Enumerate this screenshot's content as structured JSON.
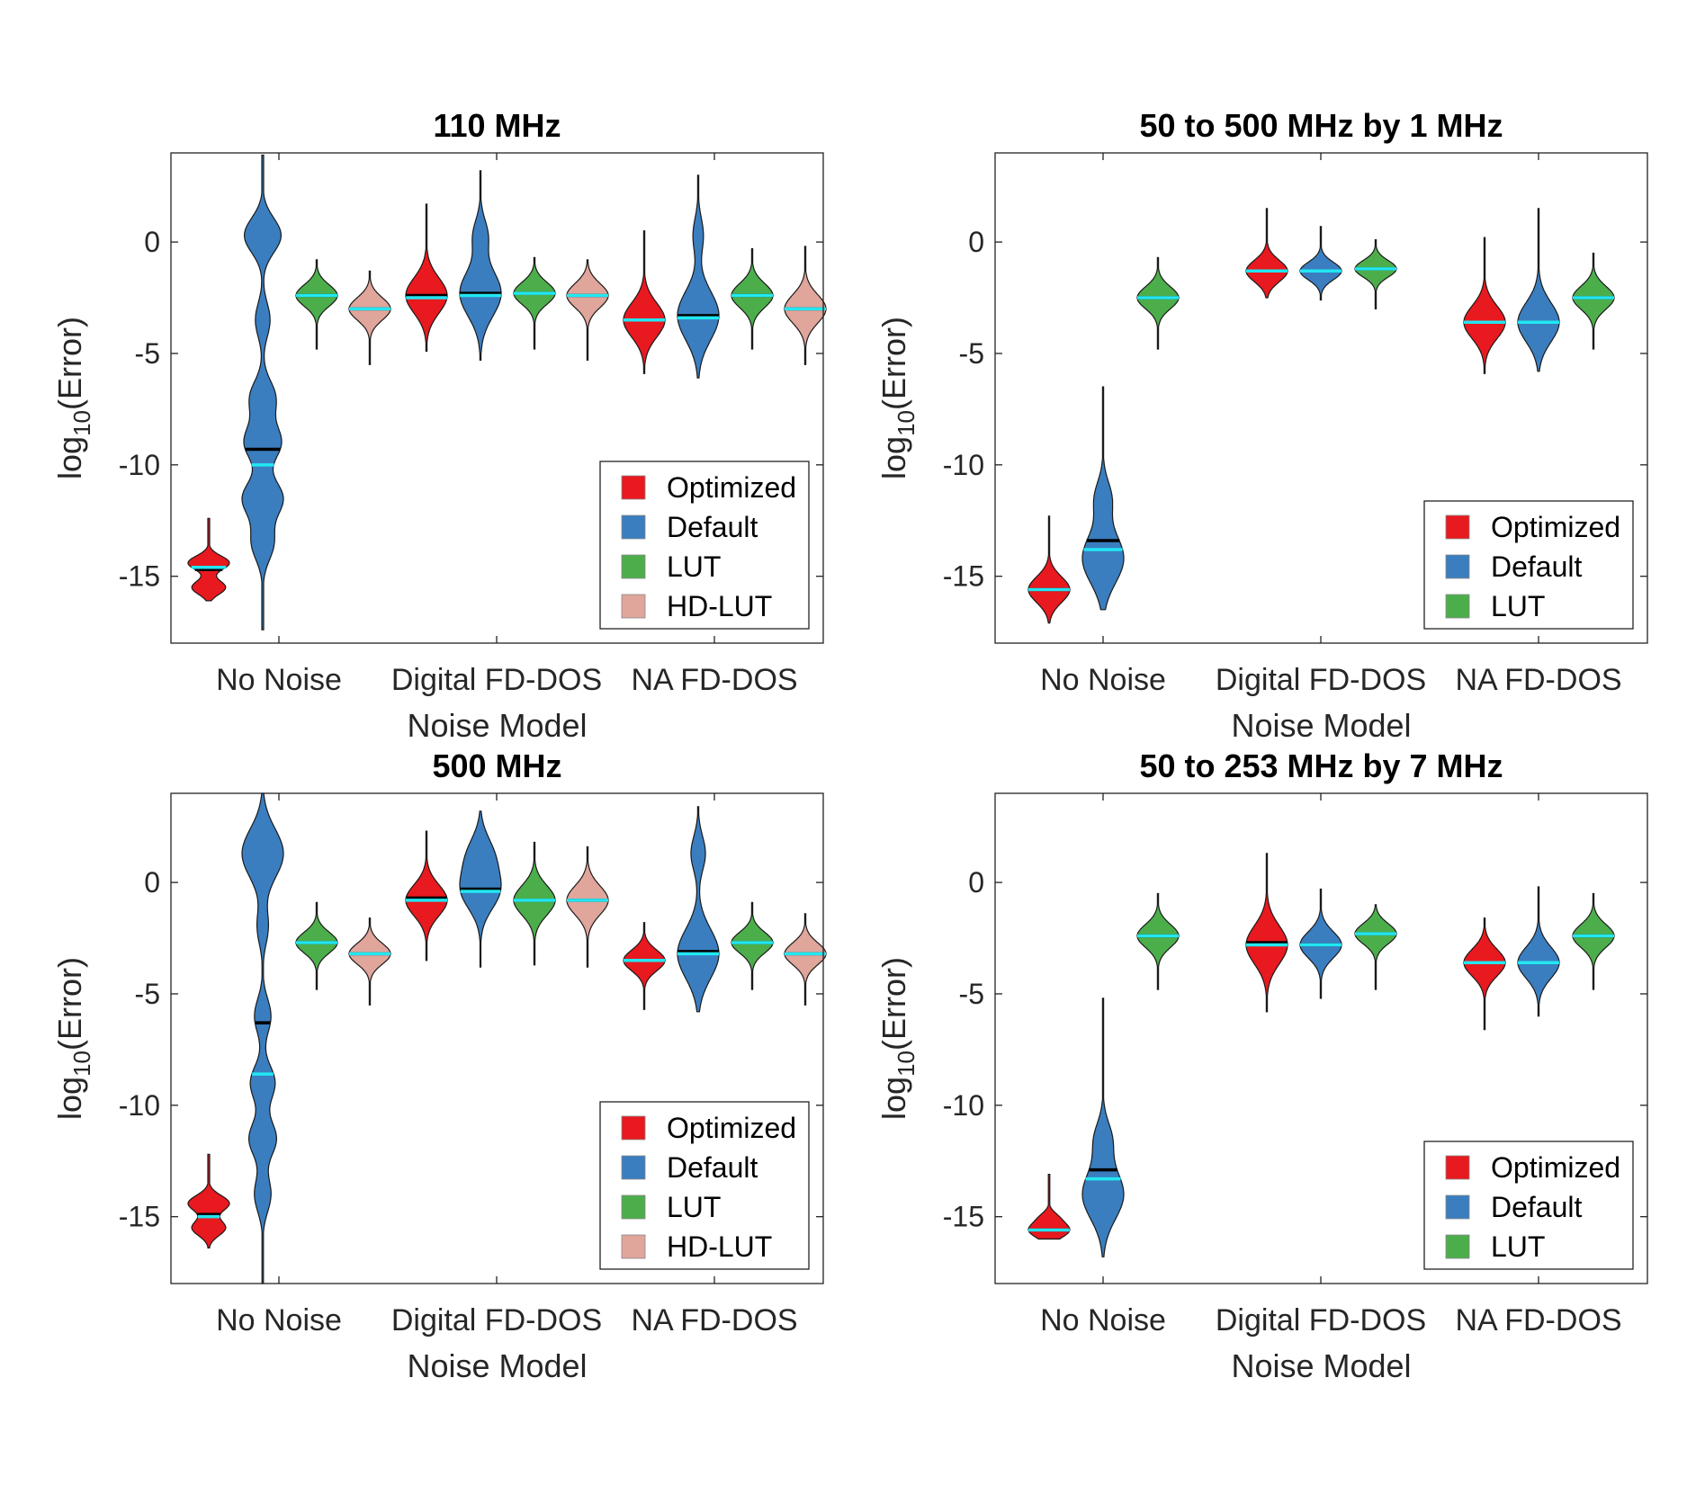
{
  "figure": {
    "background": "#ffffff"
  },
  "colors": {
    "Optimized": "#e8191f",
    "Default": "#3a7ec0",
    "LUT": "#4cae4b",
    "HD-LUT": "#e0a59b",
    "median_line": "#000000",
    "mean_line": "#22e7f2"
  },
  "chart_data": [
    {
      "type": "violin",
      "title": "110 MHz",
      "xlabel": "Noise Model",
      "ylabel": "log10(Error)",
      "ylim": [
        -18,
        4
      ],
      "yticks": [
        0,
        -5,
        -10,
        -15
      ],
      "categories": [
        "No Noise",
        "Digital FD-DOS",
        "NA FD-DOS"
      ],
      "legend": {
        "position": "bottom-right",
        "entries": [
          "Optimized",
          "Default",
          "LUT",
          "HD-LUT"
        ]
      },
      "groups": [
        {
          "category": "No Noise",
          "violins": [
            {
              "series": "Optimized",
              "min": -16.1,
              "max": -12.4,
              "median": -14.7,
              "mean": -14.6,
              "modes": [
                [
                  -14.4,
                  0.55
                ],
                [
                  -15.5,
                  0.45
                ]
              ]
            },
            {
              "series": "Default",
              "min": -17.4,
              "max": 3.9,
              "median": -9.3,
              "mean": -10.0,
              "modes": [
                [
                  0.3,
                  0.5
                ],
                [
                  -3.5,
                  0.2
                ],
                [
                  -7.0,
                  0.35
                ],
                [
                  -9.0,
                  0.5
                ],
                [
                  -11.5,
                  0.55
                ],
                [
                  -13.5,
                  0.3
                ]
              ]
            },
            {
              "series": "LUT",
              "min": -4.8,
              "max": -0.8,
              "median": -2.4,
              "mean": -2.4,
              "modes": [
                [
                  -2.4,
                  1.0
                ]
              ]
            },
            {
              "series": "HD-LUT",
              "min": -5.5,
              "max": -1.3,
              "median": -3.0,
              "mean": -3.0,
              "modes": [
                [
                  -3.0,
                  1.0
                ]
              ]
            }
          ]
        },
        {
          "category": "Digital FD-DOS",
          "violins": [
            {
              "series": "Optimized",
              "min": -4.9,
              "max": 1.7,
              "median": -2.4,
              "mean": -2.5,
              "modes": [
                [
                  -2.4,
                  1.0
                ]
              ]
            },
            {
              "series": "Default",
              "min": -5.3,
              "max": 3.2,
              "median": -2.3,
              "mean": -2.4,
              "modes": [
                [
                  -2.3,
                  1.0
                ],
                [
                  0.3,
                  0.35
                ]
              ]
            },
            {
              "series": "LUT",
              "min": -4.8,
              "max": -0.7,
              "median": -2.3,
              "mean": -2.3,
              "modes": [
                [
                  -2.3,
                  1.0
                ]
              ]
            },
            {
              "series": "HD-LUT",
              "min": -5.3,
              "max": -0.8,
              "median": -2.4,
              "mean": -2.4,
              "modes": [
                [
                  -2.4,
                  1.0
                ]
              ]
            }
          ]
        },
        {
          "category": "NA FD-DOS",
          "violins": [
            {
              "series": "Optimized",
              "min": -5.9,
              "max": 0.5,
              "median": -3.5,
              "mean": -3.5,
              "modes": [
                [
                  -3.5,
                  1.0
                ]
              ]
            },
            {
              "series": "Default",
              "min": -6.1,
              "max": 3.0,
              "median": -3.3,
              "mean": -3.4,
              "modes": [
                [
                  -3.3,
                  1.0
                ],
                [
                  0.3,
                  0.25
                ]
              ]
            },
            {
              "series": "LUT",
              "min": -4.8,
              "max": -0.3,
              "median": -2.4,
              "mean": -2.4,
              "modes": [
                [
                  -2.4,
                  1.0
                ]
              ]
            },
            {
              "series": "HD-LUT",
              "min": -5.5,
              "max": -0.2,
              "median": -3.0,
              "mean": -3.0,
              "modes": [
                [
                  -3.0,
                  1.0
                ]
              ]
            }
          ]
        }
      ]
    },
    {
      "type": "violin",
      "title": "50 to 500 MHz by 1 MHz",
      "xlabel": "Noise Model",
      "ylabel": "log10(Error)",
      "ylim": [
        -18,
        4
      ],
      "yticks": [
        0,
        -5,
        -10,
        -15
      ],
      "categories": [
        "No Noise",
        "Digital FD-DOS",
        "NA FD-DOS"
      ],
      "legend": {
        "position": "bottom-right",
        "entries": [
          "Optimized",
          "Default",
          "LUT"
        ]
      },
      "groups": [
        {
          "category": "No Noise",
          "violins": [
            {
              "series": "Optimized",
              "min": -17.1,
              "max": -12.3,
              "median": -15.6,
              "mean": -15.6,
              "modes": [
                [
                  -15.6,
                  1.0
                ]
              ]
            },
            {
              "series": "Default",
              "min": -16.5,
              "max": -6.5,
              "median": -13.4,
              "mean": -13.8,
              "modes": [
                [
                  -14.2,
                  1.0
                ],
                [
                  -11.5,
                  0.4
                ]
              ]
            },
            {
              "series": "LUT",
              "min": -4.8,
              "max": -0.7,
              "median": -2.5,
              "mean": -2.5,
              "modes": [
                [
                  -2.5,
                  1.0
                ]
              ]
            }
          ]
        },
        {
          "category": "Digital FD-DOS",
          "violins": [
            {
              "series": "Optimized",
              "min": -2.5,
              "max": 1.5,
              "median": -1.3,
              "mean": -1.3,
              "modes": [
                [
                  -1.3,
                  1.0
                ]
              ]
            },
            {
              "series": "Default",
              "min": -2.6,
              "max": 0.7,
              "median": -1.3,
              "mean": -1.3,
              "modes": [
                [
                  -1.3,
                  1.0
                ]
              ]
            },
            {
              "series": "LUT",
              "min": -3.0,
              "max": 0.1,
              "median": -1.2,
              "mean": -1.2,
              "modes": [
                [
                  -1.2,
                  1.0
                ]
              ]
            }
          ]
        },
        {
          "category": "NA FD-DOS",
          "violins": [
            {
              "series": "Optimized",
              "min": -5.9,
              "max": 0.2,
              "median": -3.6,
              "mean": -3.6,
              "modes": [
                [
                  -3.6,
                  1.0
                ]
              ]
            },
            {
              "series": "Default",
              "min": -5.8,
              "max": 1.5,
              "median": -3.6,
              "mean": -3.6,
              "modes": [
                [
                  -3.6,
                  1.0
                ]
              ]
            },
            {
              "series": "LUT",
              "min": -4.8,
              "max": -0.5,
              "median": -2.5,
              "mean": -2.5,
              "modes": [
                [
                  -2.5,
                  1.0
                ]
              ]
            }
          ]
        }
      ]
    },
    {
      "type": "violin",
      "title": "500 MHz",
      "xlabel": "Noise Model",
      "ylabel": "log10(Error)",
      "ylim": [
        -18,
        4
      ],
      "yticks": [
        0,
        -5,
        -10,
        -15
      ],
      "categories": [
        "No Noise",
        "Digital FD-DOS",
        "NA FD-DOS"
      ],
      "legend": {
        "position": "bottom-right",
        "entries": [
          "Optimized",
          "Default",
          "LUT",
          "HD-LUT"
        ]
      },
      "groups": [
        {
          "category": "No Noise",
          "violins": [
            {
              "series": "Optimized",
              "min": -16.4,
              "max": -12.2,
              "median": -14.9,
              "mean": -15.0,
              "modes": [
                [
                  -14.4,
                  0.55
                ],
                [
                  -15.5,
                  0.45
                ]
              ]
            },
            {
              "series": "Default",
              "min": -18.0,
              "max": 4.0,
              "median": -6.3,
              "mean": -8.6,
              "modes": [
                [
                  1.3,
                  0.75
                ],
                [
                  -2.0,
                  0.2
                ],
                [
                  -6.0,
                  0.3
                ],
                [
                  -9.0,
                  0.45
                ],
                [
                  -11.5,
                  0.5
                ],
                [
                  -14.0,
                  0.3
                ]
              ]
            },
            {
              "series": "LUT",
              "min": -4.8,
              "max": -0.9,
              "median": -2.7,
              "mean": -2.7,
              "modes": [
                [
                  -2.7,
                  1.0
                ]
              ]
            },
            {
              "series": "HD-LUT",
              "min": -5.5,
              "max": -1.6,
              "median": -3.2,
              "mean": -3.2,
              "modes": [
                [
                  -3.2,
                  1.0
                ]
              ]
            }
          ]
        },
        {
          "category": "Digital FD-DOS",
          "violins": [
            {
              "series": "Optimized",
              "min": -3.5,
              "max": 2.3,
              "median": -0.7,
              "mean": -0.8,
              "modes": [
                [
                  -0.8,
                  1.0
                ]
              ]
            },
            {
              "series": "Default",
              "min": -3.8,
              "max": 3.2,
              "median": -0.3,
              "mean": -0.4,
              "modes": [
                [
                  -0.4,
                  1.0
                ],
                [
                  1.2,
                  0.7
                ]
              ]
            },
            {
              "series": "LUT",
              "min": -3.7,
              "max": 1.8,
              "median": -0.8,
              "mean": -0.8,
              "modes": [
                [
                  -0.8,
                  1.0
                ]
              ]
            },
            {
              "series": "HD-LUT",
              "min": -3.8,
              "max": 1.6,
              "median": -0.8,
              "mean": -0.8,
              "modes": [
                [
                  -0.8,
                  1.0
                ]
              ]
            }
          ]
        },
        {
          "category": "NA FD-DOS",
          "violins": [
            {
              "series": "Optimized",
              "min": -5.7,
              "max": -1.8,
              "median": -3.5,
              "mean": -3.5,
              "modes": [
                [
                  -3.5,
                  1.0
                ]
              ]
            },
            {
              "series": "Default",
              "min": -5.8,
              "max": 3.4,
              "median": -3.1,
              "mean": -3.2,
              "modes": [
                [
                  -3.2,
                  1.0
                ],
                [
                  1.3,
                  0.35
                ]
              ]
            },
            {
              "series": "LUT",
              "min": -4.8,
              "max": -0.9,
              "median": -2.7,
              "mean": -2.7,
              "modes": [
                [
                  -2.7,
                  1.0
                ]
              ]
            },
            {
              "series": "HD-LUT",
              "min": -5.5,
              "max": -1.4,
              "median": -3.2,
              "mean": -3.2,
              "modes": [
                [
                  -3.2,
                  1.0
                ]
              ]
            }
          ]
        }
      ]
    },
    {
      "type": "violin",
      "title": "50 to 253 MHz by 7 MHz",
      "xlabel": "Noise Model",
      "ylabel": "log10(Error)",
      "ylim": [
        -18,
        4
      ],
      "yticks": [
        0,
        -5,
        -10,
        -15
      ],
      "categories": [
        "No Noise",
        "Digital FD-DOS",
        "NA FD-DOS"
      ],
      "legend": {
        "position": "bottom-right",
        "entries": [
          "Optimized",
          "Default",
          "LUT"
        ]
      },
      "groups": [
        {
          "category": "No Noise",
          "violins": [
            {
              "series": "Optimized",
              "min": -16.0,
              "max": -13.1,
              "median": -15.6,
              "mean": -15.6,
              "modes": [
                [
                  -15.6,
                  0.7
                ],
                [
                  -15.0,
                  0.2
                ]
              ]
            },
            {
              "series": "Default",
              "min": -16.8,
              "max": -5.2,
              "median": -12.9,
              "mean": -13.3,
              "modes": [
                [
                  -14.0,
                  1.0
                ],
                [
                  -11.5,
                  0.4
                ]
              ]
            },
            {
              "series": "LUT",
              "min": -4.8,
              "max": -0.5,
              "median": -2.4,
              "mean": -2.4,
              "modes": [
                [
                  -2.4,
                  1.0
                ]
              ]
            }
          ]
        },
        {
          "category": "Digital FD-DOS",
          "violins": [
            {
              "series": "Optimized",
              "min": -5.8,
              "max": 1.3,
              "median": -2.7,
              "mean": -2.8,
              "modes": [
                [
                  -2.8,
                  1.0
                ]
              ]
            },
            {
              "series": "Default",
              "min": -5.2,
              "max": -0.3,
              "median": -2.8,
              "mean": -2.8,
              "modes": [
                [
                  -2.8,
                  1.0
                ]
              ]
            },
            {
              "series": "LUT",
              "min": -4.8,
              "max": -1.0,
              "median": -2.3,
              "mean": -2.3,
              "modes": [
                [
                  -2.3,
                  1.0
                ]
              ]
            }
          ]
        },
        {
          "category": "NA FD-DOS",
          "violins": [
            {
              "series": "Optimized",
              "min": -6.6,
              "max": -1.6,
              "median": -3.6,
              "mean": -3.6,
              "modes": [
                [
                  -3.6,
                  1.0
                ]
              ]
            },
            {
              "series": "Default",
              "min": -6.0,
              "max": -0.2,
              "median": -3.6,
              "mean": -3.6,
              "modes": [
                [
                  -3.6,
                  1.0
                ]
              ]
            },
            {
              "series": "LUT",
              "min": -4.8,
              "max": -0.5,
              "median": -2.4,
              "mean": -2.4,
              "modes": [
                [
                  -2.4,
                  1.0
                ]
              ]
            }
          ]
        }
      ]
    }
  ]
}
